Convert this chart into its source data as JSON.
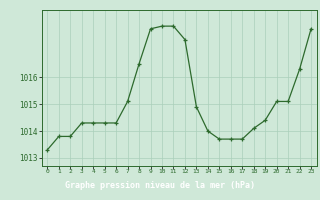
{
  "x": [
    0,
    1,
    2,
    3,
    4,
    5,
    6,
    7,
    8,
    9,
    10,
    11,
    12,
    13,
    14,
    15,
    16,
    17,
    18,
    19,
    20,
    21,
    22,
    23
  ],
  "y": [
    1013.3,
    1013.8,
    1013.8,
    1014.3,
    1014.3,
    1014.3,
    1014.3,
    1015.1,
    1016.5,
    1017.8,
    1017.9,
    1017.9,
    1017.4,
    1014.9,
    1014.0,
    1013.7,
    1013.7,
    1013.7,
    1014.1,
    1014.4,
    1015.1,
    1015.1,
    1016.3,
    1017.8
  ],
  "yticks": [
    1013,
    1014,
    1015,
    1016
  ],
  "yticklabels": [
    "1013",
    "1014",
    "1015",
    "1016"
  ],
  "xticks": [
    0,
    1,
    2,
    3,
    4,
    5,
    6,
    7,
    8,
    9,
    10,
    11,
    12,
    13,
    14,
    15,
    16,
    17,
    18,
    19,
    20,
    21,
    22,
    23
  ],
  "xlabel": "Graphe pression niveau de la mer (hPa)",
  "bg_color": "#cfe8d8",
  "line_color": "#2d6a2d",
  "grid_color": "#aacfba",
  "text_color": "#2d6a2d",
  "label_bg": "#2d6a2d",
  "label_fg": "#ffffff",
  "ylim_low": 1012.7,
  "ylim_high": 1018.5,
  "xlim_low": -0.5,
  "xlim_high": 23.5
}
